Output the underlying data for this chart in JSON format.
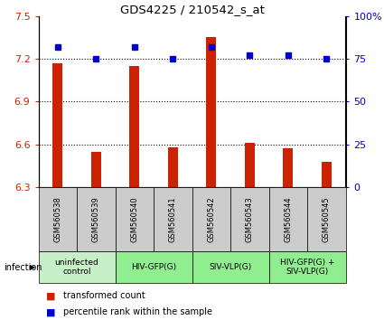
{
  "title": "GDS4225 / 210542_s_at",
  "samples": [
    "GSM560538",
    "GSM560539",
    "GSM560540",
    "GSM560541",
    "GSM560542",
    "GSM560543",
    "GSM560544",
    "GSM560545"
  ],
  "red_values": [
    7.17,
    6.55,
    7.15,
    6.58,
    7.35,
    6.61,
    6.57,
    6.48
  ],
  "blue_values": [
    82,
    75,
    82,
    75,
    82,
    77,
    77,
    75
  ],
  "ylim_left": [
    6.3,
    7.5
  ],
  "ylim_right": [
    0,
    100
  ],
  "yticks_left": [
    6.3,
    6.6,
    6.9,
    7.2,
    7.5
  ],
  "yticks_right": [
    0,
    25,
    50,
    75,
    100
  ],
  "ytick_labels_left": [
    "6.3",
    "6.6",
    "6.9",
    "7.2",
    "7.5"
  ],
  "ytick_labels_right": [
    "0",
    "25",
    "50",
    "75",
    "100%"
  ],
  "hlines": [
    7.2,
    6.9,
    6.6
  ],
  "bar_color": "#cc2200",
  "dot_color": "#0000cc",
  "bar_bottom": 6.3,
  "sample_box_color": "#cccccc",
  "group_defs": [
    {
      "start": 0,
      "end": 1,
      "label": "uninfected\ncontrol",
      "color": "#c8f0c8"
    },
    {
      "start": 2,
      "end": 3,
      "label": "HIV-GFP(G)",
      "color": "#90ee90"
    },
    {
      "start": 4,
      "end": 5,
      "label": "SIV-VLP(G)",
      "color": "#90ee90"
    },
    {
      "start": 6,
      "end": 7,
      "label": "HIV-GFP(G) +\nSIV-VLP(G)",
      "color": "#90ee90"
    }
  ],
  "infection_label": "infection",
  "legend_red": "transformed count",
  "legend_blue": "percentile rank within the sample",
  "bar_width": 0.25
}
